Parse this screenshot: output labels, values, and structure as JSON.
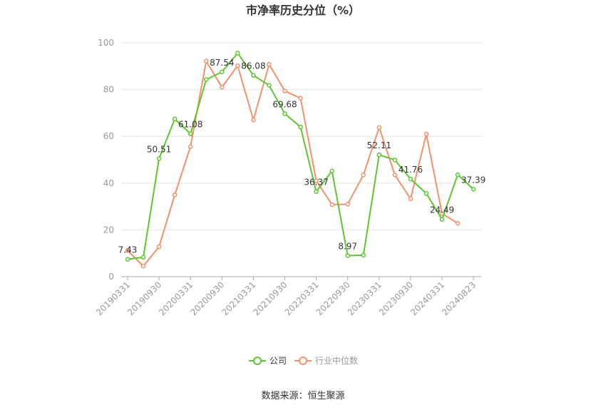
{
  "chart_data": {
    "type": "line",
    "title": "市净率历史分位（%）",
    "source": "数据来源：恒生聚源",
    "ylim": [
      0,
      100
    ],
    "yticks": [
      0,
      20,
      40,
      60,
      80,
      100
    ],
    "grid": true,
    "legend_position": "bottom",
    "x_tick_labels": [
      "20190331",
      "20190930",
      "20200331",
      "20200930",
      "20210331",
      "20210930",
      "20220331",
      "20220930",
      "20230331",
      "20230930",
      "20240331",
      "20240823"
    ],
    "x": [
      "20190331",
      "20190630",
      "20190930",
      "20191231",
      "20200331",
      "20200630",
      "20200930",
      "20201231",
      "20210331",
      "20210630",
      "20210930",
      "20211231",
      "20220331",
      "20220630",
      "20220930",
      "20221231",
      "20230331",
      "20230630",
      "20230930",
      "20231231",
      "20240331",
      "20240630",
      "20240823"
    ],
    "series": [
      {
        "name": "公司",
        "color": "#5cc72e",
        "values": [
          7.43,
          8.3,
          50.51,
          67.4,
          61.08,
          84.3,
          87.54,
          95.6,
          86.08,
          81.8,
          69.68,
          64.0,
          36.37,
          45.2,
          8.97,
          9.2,
          52.11,
          49.9,
          41.76,
          35.6,
          24.49,
          43.6,
          37.39
        ]
      },
      {
        "name": "行业中位数",
        "color": "#f4916b",
        "values": [
          11.2,
          4.5,
          12.8,
          35.0,
          55.6,
          92.2,
          81.0,
          90.2,
          67.0,
          90.8,
          79.4,
          76.3,
          41.0,
          30.8,
          31.0,
          43.5,
          63.8,
          43.5,
          33.3,
          61.0,
          27.0,
          22.8,
          null
        ]
      }
    ],
    "data_labels": [
      {
        "series": 0,
        "index": 0,
        "text": "7.43"
      },
      {
        "series": 0,
        "index": 2,
        "text": "50.51"
      },
      {
        "series": 0,
        "index": 4,
        "text": "61.08"
      },
      {
        "series": 0,
        "index": 6,
        "text": "87.54"
      },
      {
        "series": 0,
        "index": 8,
        "text": "86.08"
      },
      {
        "series": 0,
        "index": 10,
        "text": "69.68"
      },
      {
        "series": 0,
        "index": 12,
        "text": "36.37"
      },
      {
        "series": 0,
        "index": 14,
        "text": "8.97"
      },
      {
        "series": 0,
        "index": 16,
        "text": "52.11"
      },
      {
        "series": 0,
        "index": 18,
        "text": "41.76"
      },
      {
        "series": 0,
        "index": 20,
        "text": "24.49"
      },
      {
        "series": 0,
        "index": 22,
        "text": "37.39"
      }
    ]
  }
}
